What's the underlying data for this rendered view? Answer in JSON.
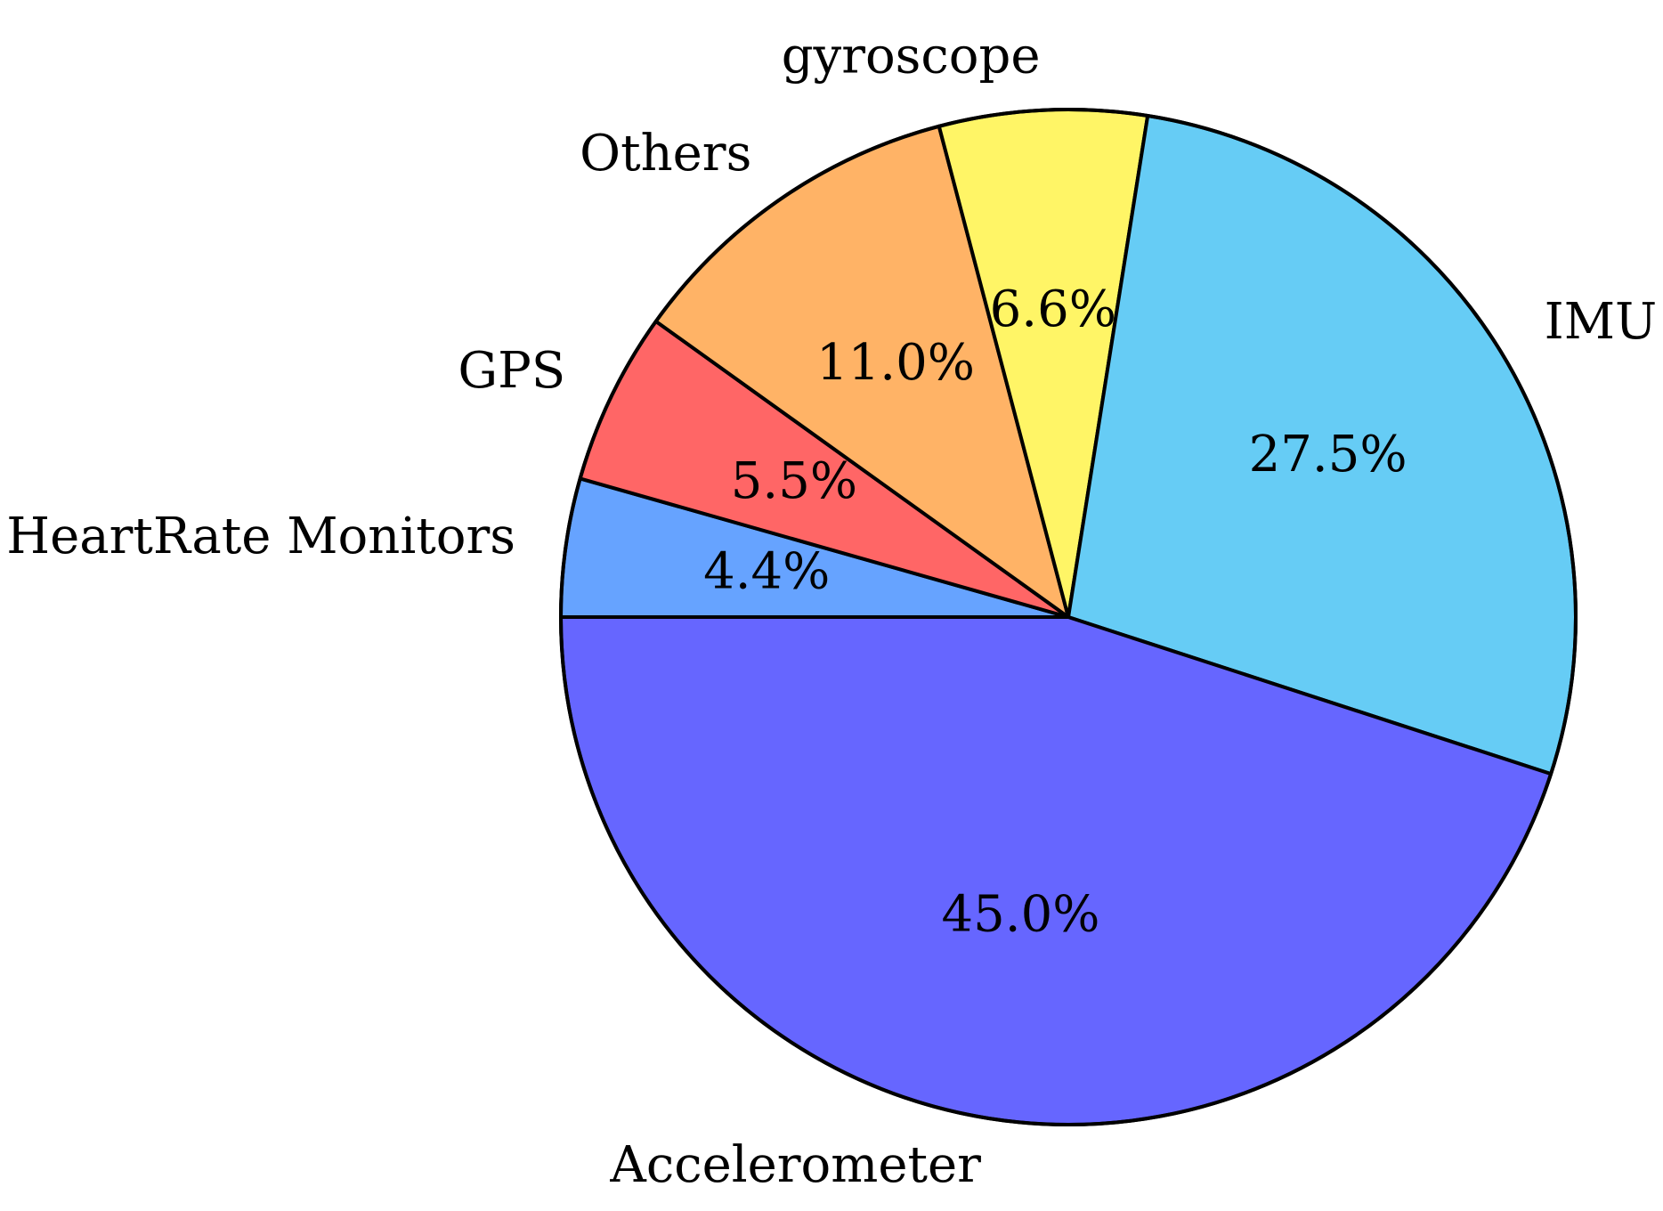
{
  "chart_data": {
    "type": "pie",
    "slices": [
      {
        "name": "HeartRate Monitors",
        "value": 4.4,
        "label": "4.4%",
        "color": "#66a3ff"
      },
      {
        "name": "GPS",
        "value": 5.5,
        "label": "5.5%",
        "color": "#ff6666"
      },
      {
        "name": "Others",
        "value": 11.0,
        "label": "11.0%",
        "color": "#ffb366"
      },
      {
        "name": "gyroscope",
        "value": 6.6,
        "label": "6.6%",
        "color": "#fff566"
      },
      {
        "name": "IMU",
        "value": 27.5,
        "label": "27.5%",
        "color": "#66ccf5"
      },
      {
        "name": "Accelerometer",
        "value": 45.0,
        "label": "45.0%",
        "color": "#6666ff"
      }
    ],
    "start_angle_deg": 180,
    "direction": "clockwise"
  }
}
